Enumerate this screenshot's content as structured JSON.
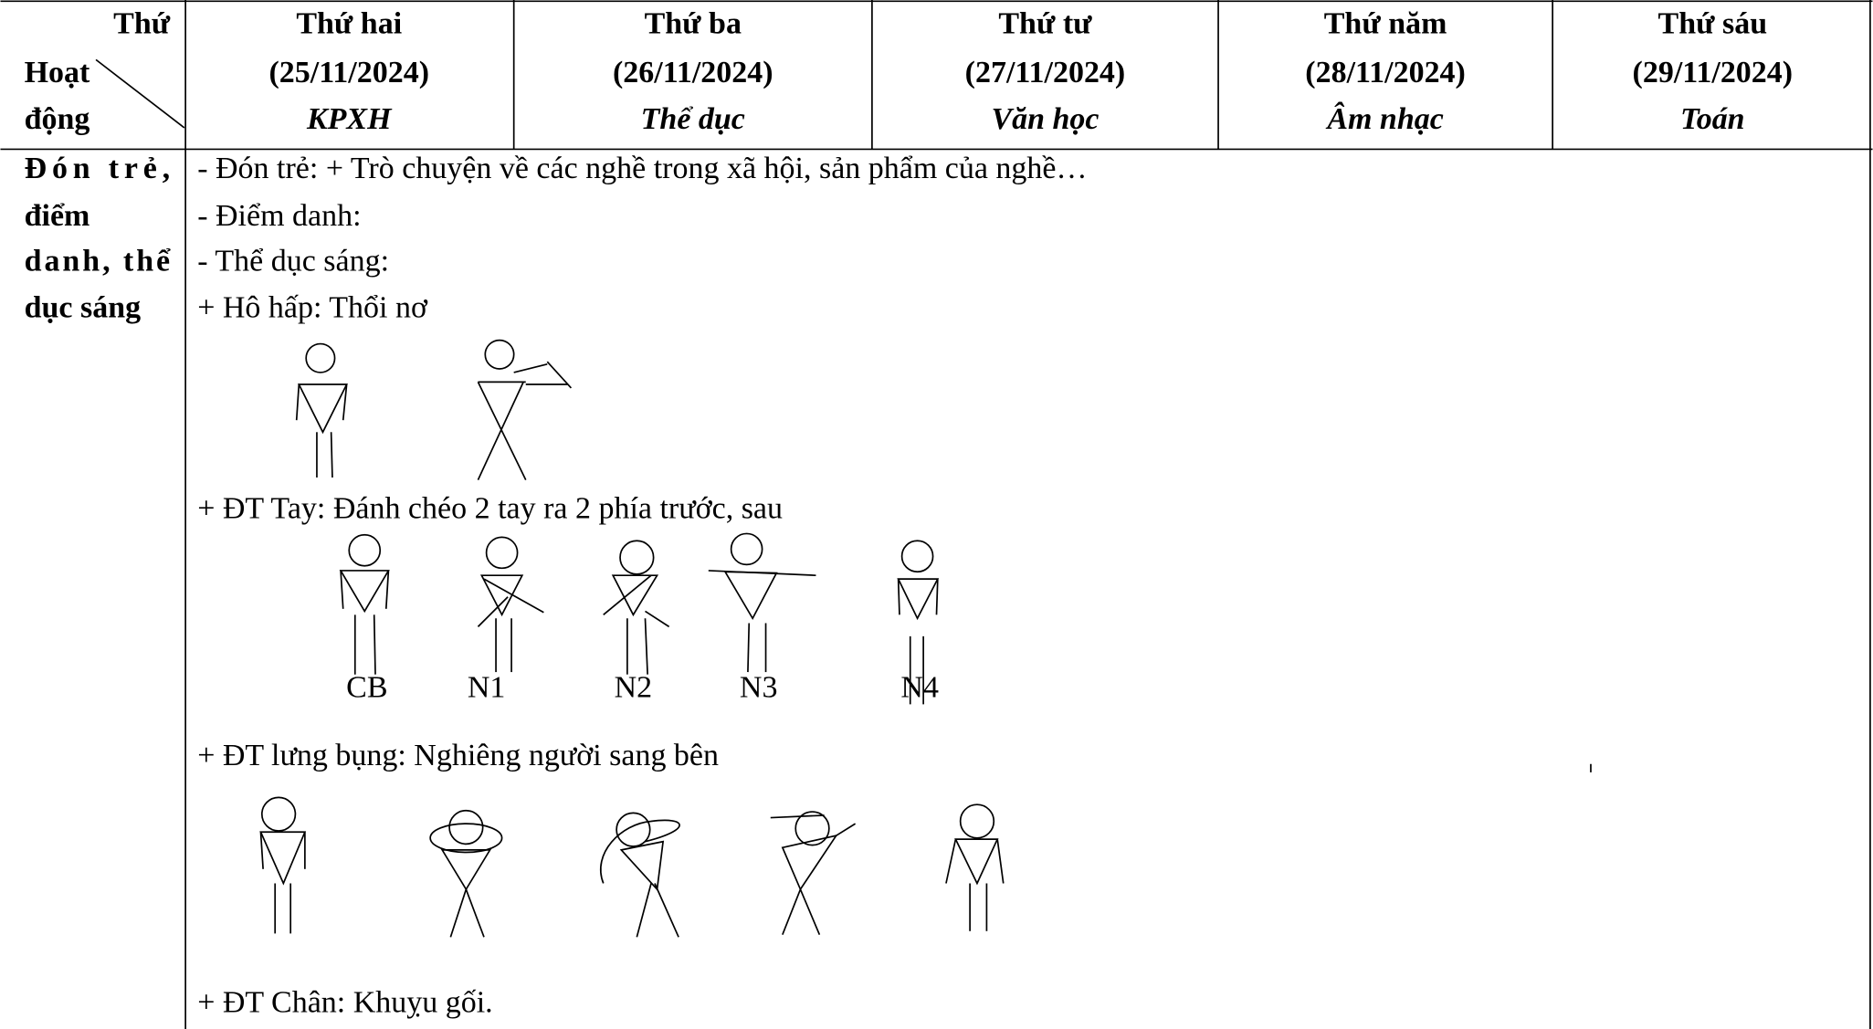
{
  "header": {
    "corner_top": "Thứ",
    "corner_bottom": [
      "Hoạt",
      "động"
    ],
    "days": [
      {
        "name": "Thứ hai",
        "date": "(25/11/2024)",
        "subject": "KPXH"
      },
      {
        "name": "Thứ ba",
        "date": "(26/11/2024)",
        "subject": "Thể dục"
      },
      {
        "name": "Thứ tư",
        "date": "(27/11/2024)",
        "subject": "Văn học"
      },
      {
        "name": "Thứ năm",
        "date": "(28/11/2024)",
        "subject": "Âm nhạc"
      },
      {
        "name": "Thứ sáu",
        "date": "(29/11/2024)",
        "subject": "Toán"
      }
    ]
  },
  "row": {
    "label": [
      "Đón trẻ,",
      "điểm",
      "danh, thể",
      "dục sáng"
    ],
    "lines": [
      "- Đón trẻ: + Trò chuyện về các nghề trong xã hội, sản phẩm của nghề…",
      "- Điểm danh:",
      "- Thể dục sáng:",
      "+ Hô hấp: Thổi nơ",
      "+ ĐT Tay: Đánh chéo 2 tay ra 2 phía trước, sau",
      "+ ĐT lưng bụng: Nghiêng người sang bên",
      "+ ĐT Chân: Khuỵu gối."
    ],
    "arm_labels": [
      "CB",
      "N1",
      "N2",
      "N3",
      "N4"
    ]
  }
}
